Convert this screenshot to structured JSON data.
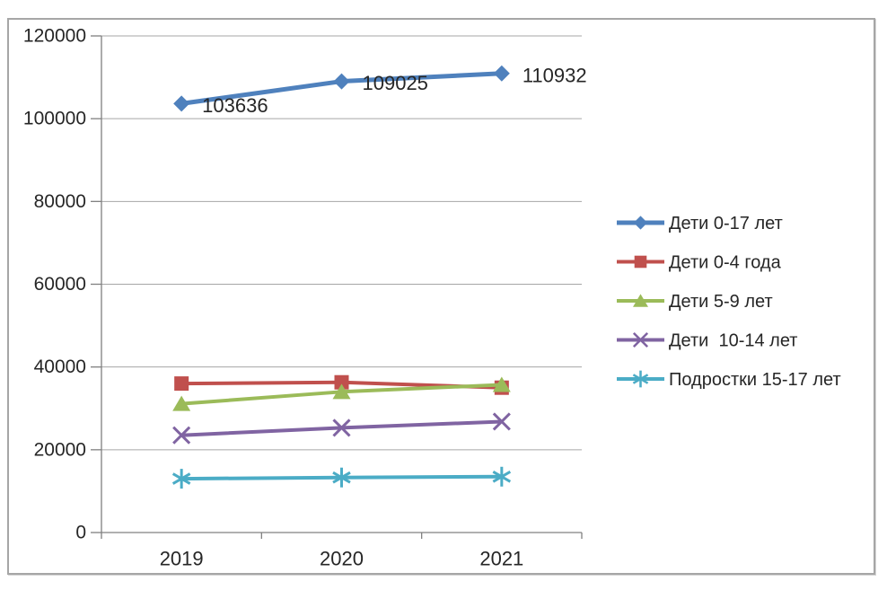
{
  "chart_data": {
    "type": "line",
    "title": "",
    "xlabel": "",
    "ylabel": "",
    "categories": [
      "2019",
      "2020",
      "2021"
    ],
    "series": [
      {
        "name": "Дети 0-17 лет",
        "values": [
          103636,
          109025,
          110932
        ],
        "color": "#4F81BD",
        "marker": "diamond",
        "line_width": 5,
        "data_labels": true
      },
      {
        "name": "Дети 0-4 года",
        "values": [
          36000,
          36300,
          35000
        ],
        "color": "#C0504D",
        "marker": "square",
        "line_width": 4,
        "data_labels": false
      },
      {
        "name": "Дети 5-9 лет",
        "values": [
          31100,
          34000,
          35700
        ],
        "color": "#9BBB59",
        "marker": "triangle",
        "line_width": 4,
        "data_labels": false
      },
      {
        "name": "Дети  10-14 лет",
        "values": [
          23500,
          25300,
          26800
        ],
        "color": "#8064A2",
        "marker": "x",
        "line_width": 4,
        "data_labels": false
      },
      {
        "name": "Подростки 15-17 лет",
        "values": [
          13000,
          13300,
          13500
        ],
        "color": "#4BACC6",
        "marker": "asterisk",
        "line_width": 4,
        "data_labels": false
      }
    ],
    "visible_data_labels": [
      "103636",
      "109025",
      "110932"
    ],
    "y_axis": {
      "min": 0,
      "max": 120000,
      "step": 20000,
      "tick_labels": [
        "0",
        "20000",
        "40000",
        "60000",
        "80000",
        "100000",
        "120000"
      ]
    },
    "x_axis": {
      "tick_labels": [
        "2019",
        "2020",
        "2021"
      ]
    },
    "legend": {
      "position": "right",
      "entries": [
        "Дети 0-17 лет",
        "Дети 0-4 года",
        "Дети 5-9 лет",
        "Дети  10-14 лет",
        "Подростки 15-17 лет"
      ]
    },
    "grid": true,
    "colors": {
      "background": "#FFFFFF",
      "frame_border": "#A6A6A6",
      "grid": "#A6A6A6",
      "axis": "#808080",
      "text": "#262626"
    }
  }
}
